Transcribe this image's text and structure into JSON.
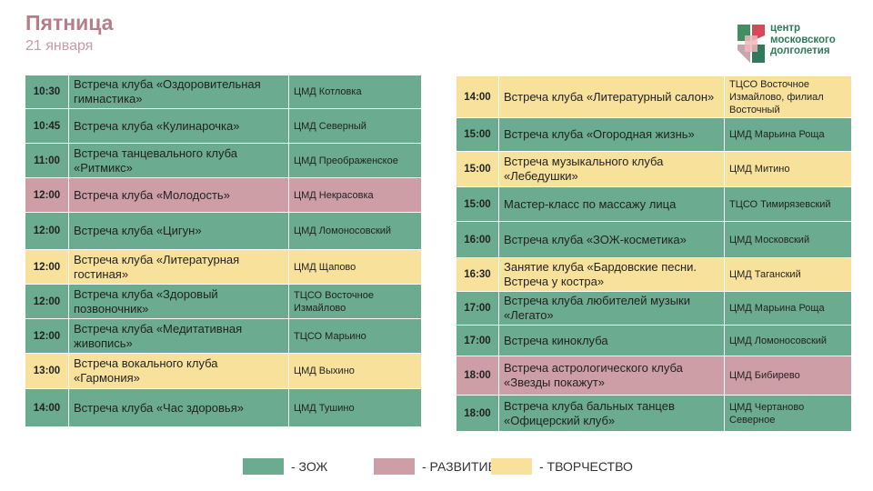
{
  "header": {
    "title": "Пятница",
    "date": "21 января"
  },
  "logo": {
    "line1": "центр",
    "line2": "московского",
    "line3": "долголетия"
  },
  "colors": {
    "zozh": "#6bab8f",
    "razvitie": "#ce9ea7",
    "tvorchestvo": "#f8e29b",
    "title": "#b77d8a"
  },
  "left_schedule": [
    {
      "time": "10:30",
      "event": "Встреча клуба «Оздоровительная гимнастика»",
      "place": "ЦМД Котловка",
      "category": "green"
    },
    {
      "time": "10:45",
      "event": "Встреча клуба «Кулинарочка»",
      "place": "ЦМД Северный",
      "category": "green"
    },
    {
      "time": "11:00",
      "event": "Встреча танцевального клуба «Ритмикс»",
      "place": "ЦМД Преображенское",
      "category": "green"
    },
    {
      "time": "12:00",
      "event": "Встреча клуба «Молодость»",
      "place": "ЦМД Некрасовка",
      "category": "pink"
    },
    {
      "time": "12:00",
      "event": "Встреча клуба «Цигун»",
      "place": "ЦМД Ломоносовский",
      "category": "green"
    },
    {
      "time": "12:00",
      "event": "Встреча клуба «Литературная гостиная»",
      "place": "ЦМД Щапово",
      "category": "yellow"
    },
    {
      "time": "12:00",
      "event": "Встреча клуба «Здоровый позвоночник»",
      "place": "ТЦСО Восточное Измайлово",
      "category": "green"
    },
    {
      "time": "12:00",
      "event": "Встреча клуба «Медитативная живопись»",
      "place": "ТЦСО Марьино",
      "category": "green"
    },
    {
      "time": "13:00",
      "event": "Встреча вокального клуба «Гармония»",
      "place": "ЦМД Выхино",
      "category": "yellow"
    },
    {
      "time": "14:00",
      "event": "Встреча клуба «Час здоровья»",
      "place": "ЦМД Тушино",
      "category": "green"
    }
  ],
  "right_schedule": [
    {
      "time": "14:00",
      "event": "Встреча клуба «Литературный салон»",
      "place": "ТЦСО Восточное Измайлово, филиал Восточный",
      "category": "yellow"
    },
    {
      "time": "15:00",
      "event": "Встреча клуба «Огородная жизнь»",
      "place": "ЦМД Марьина Роща",
      "category": "green"
    },
    {
      "time": "15:00",
      "event": "Встреча музыкального клуба «Лебедушки»",
      "place": "ЦМД Митино",
      "category": "yellow"
    },
    {
      "time": "15:00",
      "event": "Мастер-класс по массажу лица",
      "place": "ТЦСО Тимирязевский",
      "category": "green"
    },
    {
      "time": "16:00",
      "event": "Встреча клуба «ЗОЖ-косметика»",
      "place": "ЦМД Московский",
      "category": "green"
    },
    {
      "time": "16:30",
      "event": "Занятие клуба «Бардовские песни. Встреча у костра»",
      "place": "ЦМД Таганский",
      "category": "yellow"
    },
    {
      "time": "17:00",
      "event": "Встреча клуба любителей музыки «Легато»",
      "place": "ЦМД Марьина Роща",
      "category": "green"
    },
    {
      "time": "17:00",
      "event": "Встреча киноклуба",
      "place": "ЦМД Ломоносовский",
      "category": "green"
    },
    {
      "time": "18:00",
      "event": "Встреча астрологического клуба «Звезды покажут»",
      "place": "ЦМД Бибирево",
      "category": "pink"
    },
    {
      "time": "18:00",
      "event": "Встреча клуба бальных танцев «Офицерский клуб»",
      "place": "ЦМД Чертаново Северное",
      "category": "green"
    }
  ],
  "legend": [
    {
      "label": "- ЗОЖ",
      "color": "#6bab8f"
    },
    {
      "label": "- РАЗВИТИЕ",
      "color": "#ce9ea7"
    },
    {
      "label": "- ТВОРЧЕСТВО",
      "color": "#f8e29b"
    }
  ]
}
